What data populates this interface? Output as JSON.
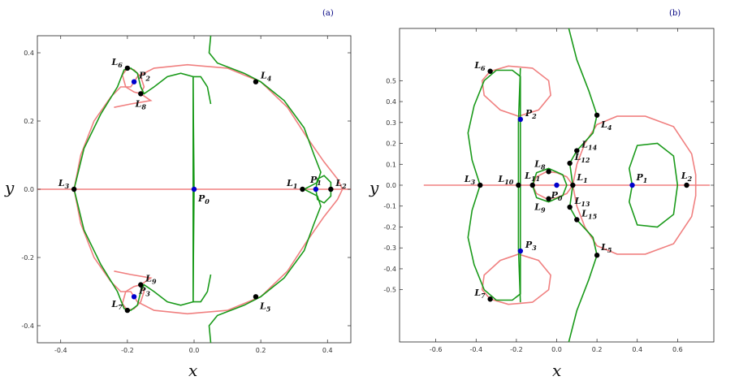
{
  "chart_data": [
    {
      "panel_label": "(a)",
      "type": "scatter",
      "xlabel": "x",
      "ylabel": "y",
      "xlim": [
        -0.47,
        0.47
      ],
      "ylim": [
        -0.45,
        0.45
      ],
      "xticks": [
        -0.4,
        -0.2,
        0.0,
        0.2,
        0.4
      ],
      "xtick_labels": [
        "-0.4",
        "-0.2",
        "0.0",
        "0.2",
        "0.4"
      ],
      "yticks": [
        -0.4,
        -0.2,
        0.0,
        0.2,
        0.4
      ],
      "ytick_labels": [
        "-0.4",
        "-0.2",
        "0.0",
        "0.2",
        "0.4"
      ],
      "series_colors": {
        "pink": "#f08080",
        "green": "#1a9a1a",
        "L_points": "#000000",
        "P_points": "#0000cc"
      },
      "points": [
        {
          "name": "L",
          "sub": "1",
          "x": 0.325,
          "y": 0.0,
          "kind": "L",
          "label_pos": "left"
        },
        {
          "name": "L",
          "sub": "2",
          "x": 0.41,
          "y": 0.0,
          "kind": "L",
          "label_pos": "right"
        },
        {
          "name": "L",
          "sub": "3",
          "x": -0.36,
          "y": 0.0,
          "kind": "L",
          "label_pos": "left"
        },
        {
          "name": "L",
          "sub": "4",
          "x": 0.185,
          "y": 0.315,
          "kind": "L",
          "label_pos": "right"
        },
        {
          "name": "L",
          "sub": "5",
          "x": 0.185,
          "y": -0.315,
          "kind": "L",
          "label_pos": "below-right"
        },
        {
          "name": "L",
          "sub": "6",
          "x": -0.2,
          "y": 0.355,
          "kind": "L",
          "label_pos": "left"
        },
        {
          "name": "L",
          "sub": "7",
          "x": -0.2,
          "y": -0.355,
          "kind": "L",
          "label_pos": "left"
        },
        {
          "name": "L",
          "sub": "8",
          "x": -0.16,
          "y": 0.28,
          "kind": "L",
          "label_pos": "below"
        },
        {
          "name": "L",
          "sub": "9",
          "x": -0.16,
          "y": -0.28,
          "kind": "L",
          "label_pos": "right"
        },
        {
          "name": "P",
          "sub": "0",
          "x": 0.0,
          "y": 0.0,
          "kind": "P",
          "label_pos": "below-right"
        },
        {
          "name": "P",
          "sub": "1",
          "x": 0.365,
          "y": 0.0,
          "kind": "P",
          "label_pos": "above"
        },
        {
          "name": "P",
          "sub": "2",
          "x": -0.18,
          "y": 0.315,
          "kind": "P",
          "label_pos": "right"
        },
        {
          "name": "P",
          "sub": "3",
          "x": -0.18,
          "y": -0.315,
          "kind": "P",
          "label_pos": "right"
        }
      ]
    },
    {
      "panel_label": "(b)",
      "type": "scatter",
      "xlabel": "x",
      "ylabel": "y",
      "xlim": [
        -0.78,
        0.78
      ],
      "ylim": [
        -0.75,
        0.75
      ],
      "xticks": [
        -0.6,
        -0.4,
        -0.2,
        0.0,
        0.2,
        0.4,
        0.6
      ],
      "xtick_labels": [
        "-0.6",
        "-0.4",
        "-0.2",
        "0.0",
        "0.2",
        "0.4",
        "0.6"
      ],
      "yticks": [
        -0.5,
        -0.4,
        -0.3,
        -0.2,
        -0.1,
        0.0,
        0.1,
        0.2,
        0.3,
        0.4,
        0.5
      ],
      "ytick_labels": [
        "-0.5",
        "-0.4",
        "-0.3",
        "-0.2",
        "-0.1",
        "0.0",
        "0.1",
        "0.2",
        "0.3",
        "0.4",
        "0.5"
      ],
      "series_colors": {
        "pink": "#f08080",
        "green": "#1a9a1a",
        "L_points": "#000000",
        "P_points": "#0000cc"
      },
      "points": [
        {
          "name": "L",
          "sub": "1",
          "x": 0.08,
          "y": 0.0,
          "kind": "L",
          "label_pos": "above-right"
        },
        {
          "name": "L",
          "sub": "2",
          "x": 0.645,
          "y": 0.0,
          "kind": "L",
          "label_pos": "above"
        },
        {
          "name": "L",
          "sub": "3",
          "x": -0.38,
          "y": 0.0,
          "kind": "L",
          "label_pos": "left"
        },
        {
          "name": "L",
          "sub": "4",
          "x": 0.2,
          "y": 0.335,
          "kind": "L",
          "label_pos": "below-right"
        },
        {
          "name": "L",
          "sub": "5",
          "x": 0.2,
          "y": -0.335,
          "kind": "L",
          "label_pos": "above-right"
        },
        {
          "name": "L",
          "sub": "6",
          "x": -0.33,
          "y": 0.545,
          "kind": "L",
          "label_pos": "left"
        },
        {
          "name": "L",
          "sub": "7",
          "x": -0.33,
          "y": -0.545,
          "kind": "L",
          "label_pos": "left"
        },
        {
          "name": "L",
          "sub": "8",
          "x": -0.04,
          "y": 0.065,
          "kind": "L",
          "label_pos": "above-left"
        },
        {
          "name": "L",
          "sub": "9",
          "x": -0.04,
          "y": -0.065,
          "kind": "L",
          "label_pos": "below-left"
        },
        {
          "name": "L",
          "sub": "10",
          "x": -0.19,
          "y": 0.0,
          "kind": "L",
          "label_pos": "left"
        },
        {
          "name": "L",
          "sub": "11",
          "x": -0.12,
          "y": 0.0,
          "kind": "L",
          "label_pos": "above"
        },
        {
          "name": "L",
          "sub": "12",
          "x": 0.065,
          "y": 0.105,
          "kind": "L",
          "label_pos": "right"
        },
        {
          "name": "L",
          "sub": "13",
          "x": 0.065,
          "y": -0.105,
          "kind": "L",
          "label_pos": "right"
        },
        {
          "name": "L",
          "sub": "14",
          "x": 0.1,
          "y": 0.165,
          "kind": "L",
          "label_pos": "right"
        },
        {
          "name": "L",
          "sub": "15",
          "x": 0.1,
          "y": -0.165,
          "kind": "L",
          "label_pos": "right"
        },
        {
          "name": "P",
          "sub": "0",
          "x": 0.0,
          "y": 0.0,
          "kind": "P",
          "label_pos": "below"
        },
        {
          "name": "P",
          "sub": "1",
          "x": 0.375,
          "y": 0.0,
          "kind": "P",
          "label_pos": "above-right"
        },
        {
          "name": "P",
          "sub": "2",
          "x": -0.18,
          "y": 0.315,
          "kind": "P",
          "label_pos": "right"
        },
        {
          "name": "P",
          "sub": "3",
          "x": -0.18,
          "y": -0.315,
          "kind": "P",
          "label_pos": "right"
        }
      ]
    }
  ]
}
